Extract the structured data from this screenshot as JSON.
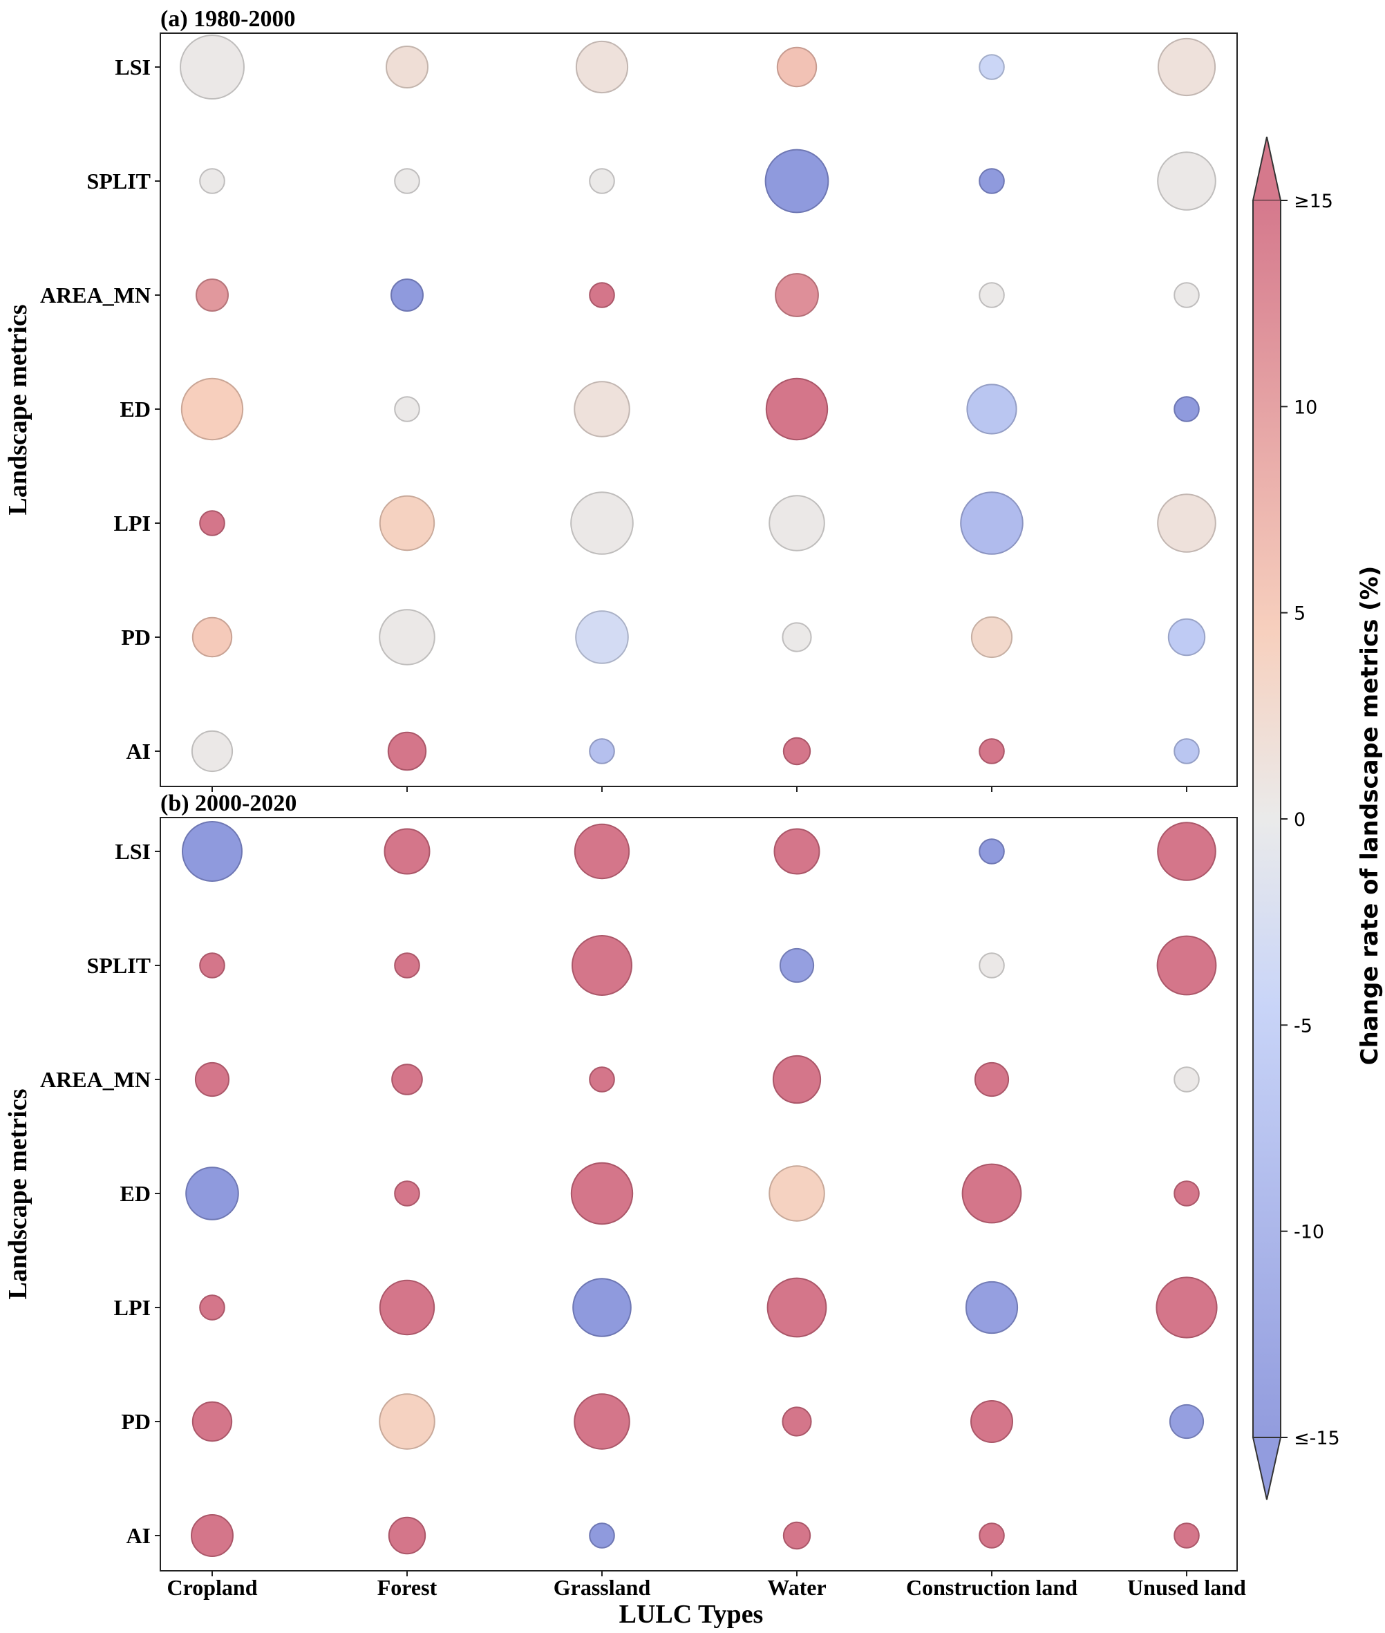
{
  "chart_data": {
    "type": "bubble",
    "categories": [
      "Cropland",
      "Forest",
      "Grassland",
      "Water",
      "Construction land",
      "Unused land"
    ],
    "metrics": [
      "LSI",
      "SPLIT",
      "AREA_MN",
      "ED",
      "LPI",
      "PD",
      "AI"
    ],
    "xlabel": "LULC Types",
    "ylabel": "Landscape metrics",
    "colorbar": {
      "label": "Change rate of landscape metrics (%)",
      "range": [
        -15,
        15
      ],
      "extend": "both",
      "ticks": [
        {
          "value": 15,
          "label": "≥15"
        },
        {
          "value": 10,
          "label": "10"
        },
        {
          "value": 5,
          "label": "5"
        },
        {
          "value": 0,
          "label": "0"
        },
        {
          "value": -5,
          "label": "-5"
        },
        {
          "value": -10,
          "label": "-10"
        },
        {
          "value": -15,
          "label": "≤-15"
        }
      ],
      "colors": {
        "low": "#8691da",
        "mid": "#e8e8e8",
        "high": "#d06a80"
      }
    },
    "panels": [
      {
        "title": "(a) 1980-2000",
        "values": [
          [
            0.3,
            2.0,
            1.5,
            6.0,
            -4.0,
            1.5
          ],
          [
            0.2,
            0.2,
            0.2,
            -16.0,
            -15.0,
            0.3
          ],
          [
            11.0,
            -16.0,
            20.0,
            12.0,
            0.2,
            0.2
          ],
          [
            4.5,
            0.2,
            1.5,
            18.0,
            -7.0,
            -15.0
          ],
          [
            18.0,
            4.0,
            0.3,
            0.3,
            -9.0,
            1.5
          ],
          [
            5.0,
            0.3,
            -3.0,
            0.2,
            3.0,
            -6.0
          ],
          [
            0.3,
            16.0,
            -8.0,
            18.0,
            18.0,
            -7.0
          ]
        ],
        "sizes": [
          [
            4,
            1.7,
            2.6,
            1.5,
            0.6,
            3.2
          ],
          [
            0.6,
            0.6,
            0.6,
            3.9,
            0.6,
            3.3
          ],
          [
            1.0,
            1.0,
            0.6,
            1.8,
            0.6,
            0.6
          ],
          [
            3.7,
            0.6,
            3.0,
            3.7,
            2.4,
            0.6
          ],
          [
            0.6,
            2.9,
            3.8,
            3.0,
            3.8,
            3.3
          ],
          [
            1.5,
            3.0,
            2.7,
            0.8,
            1.6,
            1.3
          ],
          [
            1.6,
            1.4,
            0.6,
            0.7,
            0.6,
            0.6
          ]
        ]
      },
      {
        "title": "(b) 2000-2020",
        "values": [
          [
            -18.0,
            18.0,
            20.0,
            18.0,
            -16.0,
            18.0
          ],
          [
            18.0,
            18.0,
            20.0,
            -14.0,
            0.3,
            18.0
          ],
          [
            18.0,
            18.0,
            18.0,
            18.0,
            18.0,
            0.3
          ],
          [
            -16.0,
            18.0,
            20.0,
            4.0,
            18.0,
            18.0
          ],
          [
            18.0,
            18.0,
            -16.0,
            18.0,
            -14.0,
            18.0
          ],
          [
            18.0,
            4.0,
            18.0,
            18.0,
            18.0,
            -14.0
          ],
          [
            18.0,
            18.0,
            -16.0,
            18.0,
            18.0,
            18.0
          ]
        ],
        "sizes": [
          [
            3.5,
            2.0,
            2.9,
            2.0,
            0.6,
            3.3
          ],
          [
            0.6,
            0.6,
            3.5,
            1.1,
            0.6,
            3.4
          ],
          [
            1.1,
            0.9,
            0.6,
            2.2,
            1.1,
            0.6
          ],
          [
            2.7,
            0.6,
            3.7,
            3.0,
            3.4,
            0.6
          ],
          [
            0.6,
            2.9,
            3.3,
            3.4,
            2.6,
            3.6
          ],
          [
            1.5,
            3.0,
            3.0,
            0.8,
            1.7,
            1.1
          ],
          [
            1.7,
            1.3,
            0.6,
            0.7,
            0.6,
            0.6
          ]
        ]
      }
    ]
  }
}
